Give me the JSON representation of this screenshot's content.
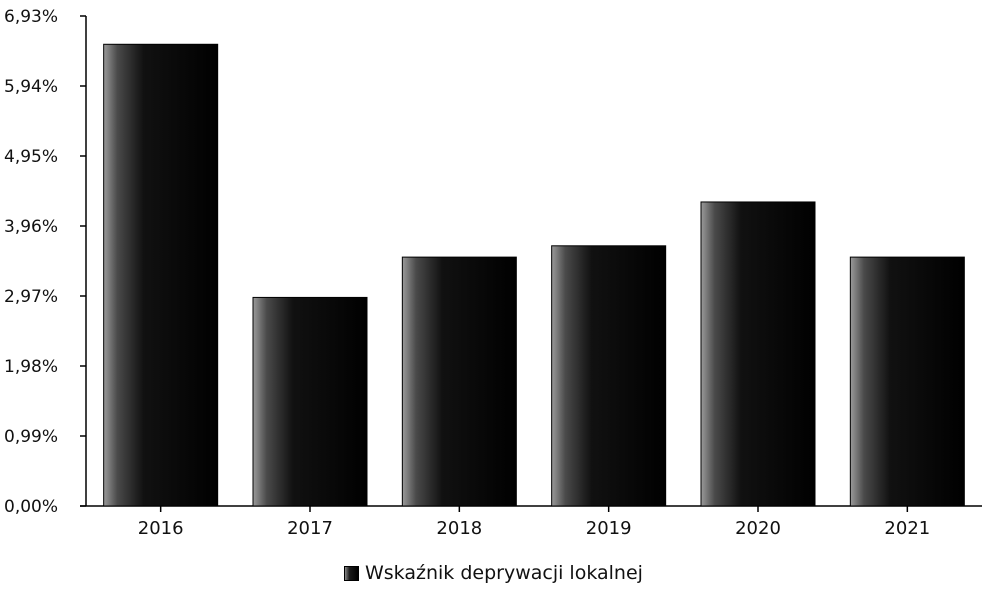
{
  "chart_data": {
    "type": "bar",
    "categories": [
      "2016",
      "2017",
      "2018",
      "2019",
      "2020",
      "2021"
    ],
    "series": [
      {
        "name": "Wskaźnik deprywacji lokalnej",
        "values": [
          6.53,
          2.95,
          3.52,
          3.68,
          4.3,
          3.52
        ]
      }
    ],
    "ylim": [
      0,
      6.93
    ],
    "y_ticks": [
      "0,00%",
      "0,99%",
      "1,98%",
      "2,97%",
      "3,96%",
      "4,95%",
      "5,94%",
      "6,93%"
    ],
    "y_tick_values": [
      0,
      0.99,
      1.98,
      2.97,
      3.96,
      4.95,
      5.94,
      6.93
    ],
    "grid": false,
    "legend_position": "bottom-center",
    "bar_color": "#000000",
    "bar_highlight_color": "#9a9a9a",
    "title": "",
    "xlabel": "",
    "ylabel": ""
  },
  "legend": {
    "label": "Wskaźnik deprywacji lokalnej"
  }
}
